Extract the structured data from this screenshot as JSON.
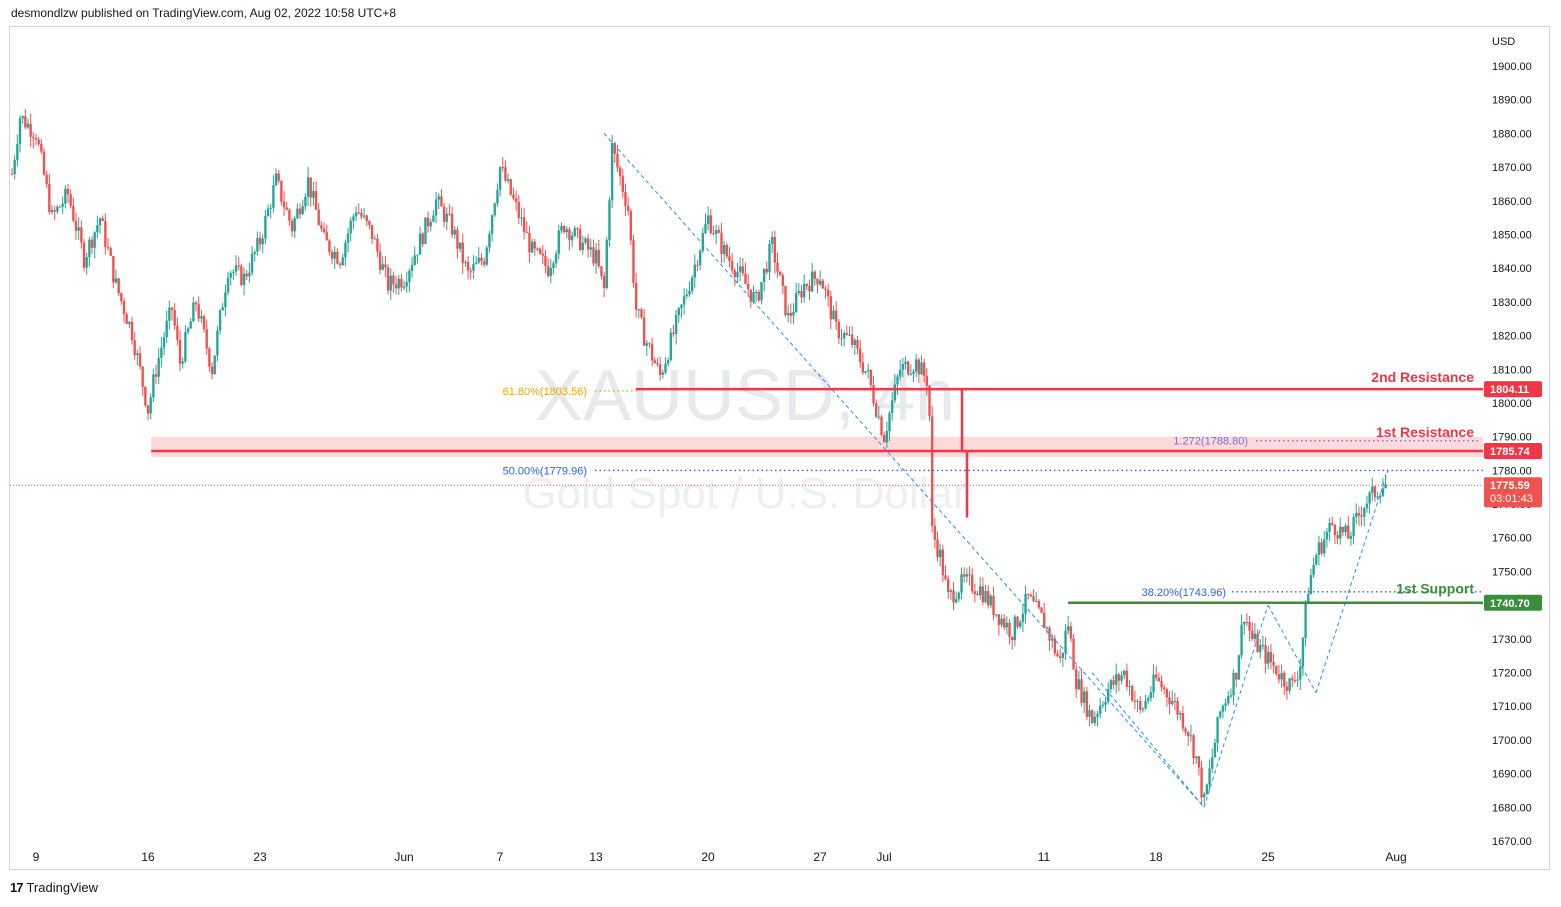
{
  "header": {
    "publisher_text": "desmondlzw published on TradingView.com, Aug 02, 2022 10:58 UTC+8"
  },
  "footer": {
    "brand": "TradingView"
  },
  "watermark": {
    "symbol": "XAUUSD, 4h",
    "description": "Gold Spot / U.S. Dollar"
  },
  "colors": {
    "up": "#26a69a",
    "down": "#ef5350",
    "resistance": "#f23645",
    "support": "#388e3c",
    "zone": "#fbd2d5",
    "fib_blue": "#2962ff",
    "fib_orange": "#f0a30a",
    "fib_purple": "#7b6fd6",
    "trend": "#2196f3"
  },
  "chart_data": {
    "type": "candlestick",
    "currency": "USD",
    "ylim": [
      1670,
      1905
    ],
    "y_ticks": [
      1670,
      1680,
      1690,
      1700,
      1710,
      1720,
      1730,
      1740,
      1750,
      1760,
      1770,
      1780,
      1790,
      1800,
      1810,
      1820,
      1830,
      1840,
      1850,
      1860,
      1870,
      1880,
      1890,
      1900
    ],
    "y_tick_labels": [
      "1670.00",
      "1680.00",
      "1690.00",
      "1700.00",
      "1710.00",
      "1720.00",
      "1730.00",
      "1740.00",
      "1750.00",
      "1760.00",
      "1770.00",
      "1780.00",
      "1790.00",
      "1800.00",
      "1810.00",
      "1820.00",
      "1830.00",
      "1840.00",
      "1850.00",
      "1860.00",
      "1870.00",
      "1880.00",
      "1890.00",
      "1900.00"
    ],
    "x_ticks": [
      {
        "label": "9",
        "day": 0
      },
      {
        "label": "16",
        "day": 7
      },
      {
        "label": "23",
        "day": 14
      },
      {
        "label": "Jun",
        "day": 23
      },
      {
        "label": "7",
        "day": 29
      },
      {
        "label": "13",
        "day": 35
      },
      {
        "label": "20",
        "day": 42
      },
      {
        "label": "27",
        "day": 49
      },
      {
        "label": "Jul",
        "day": 53
      },
      {
        "label": "11",
        "day": 63
      },
      {
        "label": "18",
        "day": 70
      },
      {
        "label": "25",
        "day": 77
      },
      {
        "label": "Aug",
        "day": 85
      }
    ],
    "price_path": [
      [
        -1.5,
        1868
      ],
      [
        -1,
        1885
      ],
      [
        0,
        1880
      ],
      [
        1,
        1855
      ],
      [
        2,
        1862
      ],
      [
        3,
        1843
      ],
      [
        4,
        1855
      ],
      [
        5,
        1835
      ],
      [
        6,
        1821
      ],
      [
        7,
        1798
      ],
      [
        7.5,
        1810
      ],
      [
        8,
        1820
      ],
      [
        8.5,
        1828
      ],
      [
        9,
        1812
      ],
      [
        10,
        1830
      ],
      [
        11,
        1810
      ],
      [
        12,
        1840
      ],
      [
        13,
        1837
      ],
      [
        14,
        1848
      ],
      [
        15,
        1866
      ],
      [
        16,
        1852
      ],
      [
        17,
        1866
      ],
      [
        18,
        1848
      ],
      [
        19,
        1843
      ],
      [
        20,
        1858
      ],
      [
        21,
        1850
      ],
      [
        22,
        1835
      ],
      [
        23,
        1837
      ],
      [
        24,
        1848
      ],
      [
        25,
        1860
      ],
      [
        26,
        1852
      ],
      [
        27,
        1838
      ],
      [
        28,
        1843
      ],
      [
        29,
        1870
      ],
      [
        30,
        1858
      ],
      [
        31,
        1845
      ],
      [
        32,
        1840
      ],
      [
        33,
        1853
      ],
      [
        34,
        1848
      ],
      [
        35,
        1843
      ],
      [
        35.5,
        1833
      ],
      [
        36,
        1876
      ],
      [
        37,
        1858
      ],
      [
        37.5,
        1828
      ],
      [
        38,
        1820
      ],
      [
        39,
        1808
      ],
      [
        40,
        1823
      ],
      [
        41,
        1838
      ],
      [
        42,
        1855
      ],
      [
        43,
        1845
      ],
      [
        44,
        1838
      ],
      [
        45,
        1830
      ],
      [
        46,
        1847
      ],
      [
        47,
        1825
      ],
      [
        48,
        1835
      ],
      [
        49,
        1838
      ],
      [
        50,
        1822
      ],
      [
        51,
        1818
      ],
      [
        52,
        1808
      ],
      [
        53,
        1790
      ],
      [
        54,
        1810
      ],
      [
        55,
        1812
      ],
      [
        55.8,
        1806
      ],
      [
        56,
        1762
      ],
      [
        56.5,
        1755
      ],
      [
        57,
        1742
      ],
      [
        58,
        1747
      ],
      [
        59,
        1745
      ],
      [
        60,
        1738
      ],
      [
        61,
        1732
      ],
      [
        62,
        1742
      ],
      [
        63,
        1735
      ],
      [
        64,
        1723
      ],
      [
        64.5,
        1735
      ],
      [
        65,
        1718
      ],
      [
        66,
        1706
      ],
      [
        67,
        1715
      ],
      [
        68,
        1720
      ],
      [
        69,
        1708
      ],
      [
        70,
        1718
      ],
      [
        71,
        1712
      ],
      [
        72,
        1703
      ],
      [
        72.5,
        1695
      ],
      [
        73,
        1681
      ],
      [
        74,
        1708
      ],
      [
        75,
        1720
      ],
      [
        75.5,
        1738
      ],
      [
        76,
        1730
      ],
      [
        77,
        1724
      ],
      [
        78,
        1718
      ],
      [
        78.5,
        1716
      ],
      [
        79,
        1722
      ],
      [
        79.5,
        1745
      ],
      [
        80,
        1755
      ],
      [
        81,
        1764
      ],
      [
        82,
        1760
      ],
      [
        83,
        1770
      ],
      [
        84,
        1775
      ],
      [
        84.5,
        1776
      ]
    ],
    "annotations": [
      {
        "name": "2nd Resistance",
        "value": 1804.11,
        "label": "1804.11"
      },
      {
        "name": "1st Resistance",
        "value": 1785.74,
        "label": "1785.74"
      },
      {
        "name": "1st Support",
        "value": 1740.7,
        "label": "1740.70"
      }
    ],
    "resistance_zone": [
      1784,
      1790
    ],
    "fib_levels": [
      {
        "label": "61.80%(1803.56)",
        "value": 1803.56
      },
      {
        "label": "50.00%(1779.96)",
        "value": 1779.96
      },
      {
        "label": "38.20%(1743.96)",
        "value": 1743.96
      },
      {
        "label": "1.272(1788.80)",
        "value": 1788.8
      }
    ],
    "last_price": {
      "value": 1775.59,
      "label": "1775.59",
      "countdown": "03:01:43"
    },
    "trend_lines": [
      [
        [
          35.5,
          1880
        ],
        [
          73,
          1680
        ]
      ],
      [
        [
          73,
          1680
        ],
        [
          77,
          1740
        ]
      ],
      [
        [
          77,
          1740
        ],
        [
          80,
          1714
        ]
      ],
      [
        [
          80,
          1714
        ],
        [
          84.5,
          1780
        ]
      ],
      [
        [
          66,
          1720
        ],
        [
          73,
          1680
        ]
      ]
    ]
  }
}
